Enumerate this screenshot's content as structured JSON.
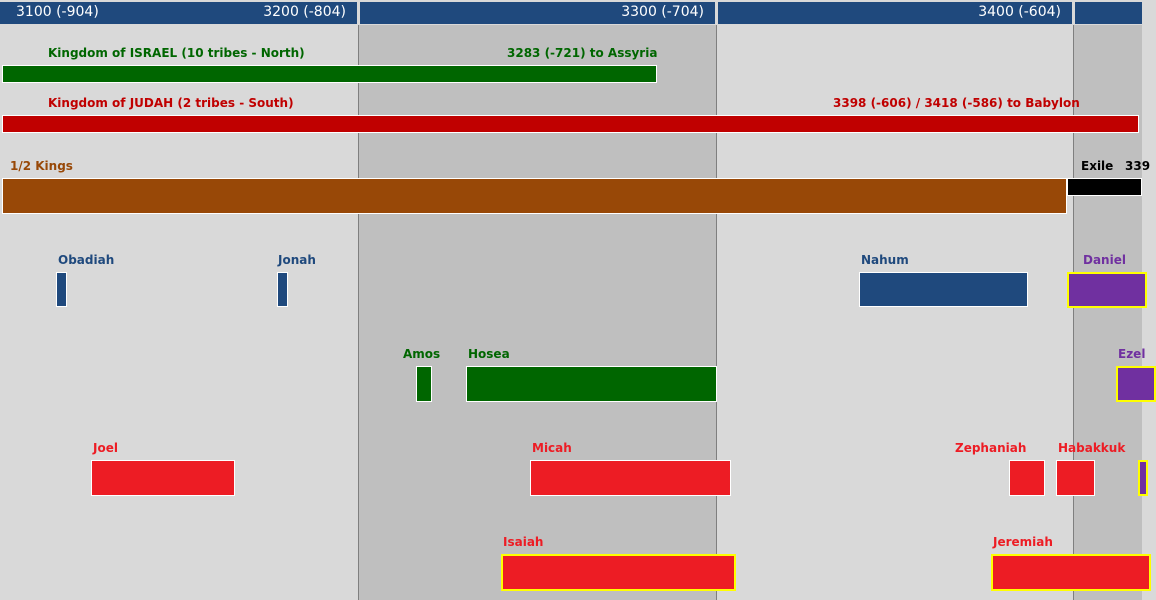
{
  "header": {
    "labels": [
      "3100 (-904)",
      "3200 (-804)",
      "3300 (-704)",
      "3400 (-604)"
    ]
  },
  "colors": {
    "header": "#1f497d",
    "israel": "#006600",
    "judah": "#c00000",
    "kings": "#984807",
    "exile": "#000000",
    "prophet_north": "#1f497d",
    "prophet_exile": "#7030a0",
    "prophet_judah": "#ed1c24",
    "highlight_border": "#ffff00"
  },
  "kingdoms": {
    "israel_label": "Kingdom of ISRAEL (10 tribes - North)",
    "israel_end": "3283 (-721) to Assyria",
    "judah_label": "Kingdom of JUDAH (2 tribes - South)",
    "judah_end": "3398 (-606) / 3418 (-586) to Babylon"
  },
  "books": {
    "kings_label": "1/2 Kings",
    "exile_label": "Exile",
    "exile_year": "339"
  },
  "prophets": [
    {
      "name": "Obadiah",
      "color": "#1f497d"
    },
    {
      "name": "Jonah",
      "color": "#1f497d"
    },
    {
      "name": "Nahum",
      "color": "#1f497d"
    },
    {
      "name": "Daniel",
      "color": "#7030a0"
    },
    {
      "name": "Amos",
      "color": "#006600"
    },
    {
      "name": "Hosea",
      "color": "#006600"
    },
    {
      "name": "Ezel",
      "color": "#7030a0"
    },
    {
      "name": "Joel",
      "color": "#ed1c24"
    },
    {
      "name": "Micah",
      "color": "#ed1c24"
    },
    {
      "name": "Zephaniah",
      "color": "#ed1c24"
    },
    {
      "name": "Habakkuk",
      "color": "#ed1c24"
    },
    {
      "name": "Isaiah",
      "color": "#ed1c24"
    },
    {
      "name": "Jeremiah",
      "color": "#ed1c24"
    }
  ]
}
